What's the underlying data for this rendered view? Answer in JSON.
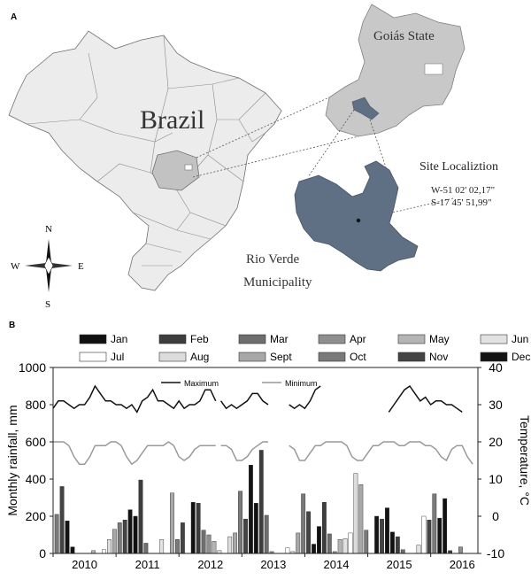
{
  "panel_a": {
    "letter": "A",
    "country_label": "Brazil",
    "state_label": "Goiás State",
    "site_title": "Site Localiztion",
    "coord_w": "W-51 02' 02,17\"",
    "coord_s": "S-17 45' 51,99\"",
    "municipality_line1": "Rio Verde",
    "municipality_line2": "Municipality",
    "compass": {
      "n": "N",
      "s": "S",
      "e": "E",
      "w": "W"
    },
    "colors": {
      "country_fill": "#ececec",
      "state_fill": "#c8c8c8",
      "highlight_fill": "#c2c2c2",
      "municipality_fill": "#5f6f84",
      "border": "#707070"
    }
  },
  "panel_b": {
    "letter": "B",
    "legend_months": [
      "Jan",
      "Feb",
      "Mar",
      "Apr",
      "May",
      "Jun",
      "Jul",
      "Aug",
      "Sept",
      "Oct",
      "Nov",
      "Dec"
    ],
    "month_colors": [
      "#111111",
      "#3d3d3d",
      "#6e6e6e",
      "#8f8f8f",
      "#b4b4b4",
      "#e2e2e2",
      "#ffffff",
      "#dcdcdc",
      "#a8a8a8",
      "#7a7a7a",
      "#444444",
      "#141414"
    ],
    "line_legend": {
      "max": "Maximum",
      "min": "Minimum"
    },
    "colors": {
      "max_line": "#111111",
      "min_line": "#999999"
    }
  },
  "chart_data": {
    "type": "bar",
    "xlabel": "",
    "ylabel": "Monthly rainfall, mm",
    "ylabel_right": "Temperature, °C",
    "ylim": [
      0,
      1000
    ],
    "ylim_right": [
      -10,
      40
    ],
    "yticks": [
      0,
      200,
      400,
      600,
      800,
      1000
    ],
    "yticks_right": [
      -10,
      0,
      10,
      20,
      30,
      40
    ],
    "year_labels": [
      "2010",
      "2011",
      "2012",
      "2013",
      "2014",
      "2015",
      "2016"
    ],
    "xlim_months": [
      0,
      81
    ],
    "series": [
      {
        "name": "Monthly rainfall",
        "type": "bar",
        "points": [
          [
            0.7,
            210,
            9
          ],
          [
            1.7,
            360,
            10
          ],
          [
            2.7,
            175,
            11
          ],
          [
            3.7,
            35,
            0
          ],
          [
            7.7,
            15,
            4
          ],
          [
            9.7,
            20,
            6
          ],
          [
            10.7,
            75,
            7
          ],
          [
            11.7,
            130,
            8
          ],
          [
            12.7,
            165,
            9
          ],
          [
            13.7,
            180,
            10
          ],
          [
            14.7,
            235,
            11
          ],
          [
            15.7,
            200,
            0
          ],
          [
            16.7,
            395,
            1
          ],
          [
            17.7,
            55,
            2
          ],
          [
            20.7,
            75,
            5
          ],
          [
            22.7,
            325,
            8
          ],
          [
            23.7,
            75,
            9
          ],
          [
            24.7,
            165,
            10
          ],
          [
            26.7,
            275,
            0
          ],
          [
            27.7,
            270,
            1
          ],
          [
            28.7,
            125,
            2
          ],
          [
            29.7,
            100,
            3
          ],
          [
            30.7,
            65,
            4
          ],
          [
            31.7,
            15,
            5
          ],
          [
            33.7,
            90,
            7
          ],
          [
            34.7,
            110,
            8
          ],
          [
            35.7,
            335,
            9
          ],
          [
            36.7,
            185,
            10
          ],
          [
            37.7,
            475,
            11
          ],
          [
            38.7,
            270,
            0
          ],
          [
            39.7,
            555,
            1
          ],
          [
            40.7,
            205,
            2
          ],
          [
            41.7,
            10,
            3
          ],
          [
            44.7,
            30,
            6
          ],
          [
            45.7,
            10,
            7
          ],
          [
            46.7,
            110,
            8
          ],
          [
            47.7,
            320,
            9
          ],
          [
            48.7,
            225,
            10
          ],
          [
            49.7,
            50,
            11
          ],
          [
            50.7,
            145,
            0
          ],
          [
            51.7,
            275,
            1
          ],
          [
            52.7,
            105,
            2
          ],
          [
            53.7,
            10,
            3
          ],
          [
            54.7,
            75,
            4
          ],
          [
            55.7,
            80,
            5
          ],
          [
            56.7,
            110,
            6
          ],
          [
            57.7,
            430,
            7
          ],
          [
            58.7,
            370,
            8
          ],
          [
            59.7,
            125,
            9
          ],
          [
            61.7,
            200,
            11
          ],
          [
            62.7,
            185,
            10
          ],
          [
            63.7,
            245,
            11
          ],
          [
            64.7,
            115,
            0
          ],
          [
            65.7,
            90,
            1
          ],
          [
            66.7,
            20,
            2
          ],
          [
            69.7,
            45,
            5
          ],
          [
            70.7,
            200,
            6
          ],
          [
            71.7,
            180,
            10
          ],
          [
            72.7,
            320,
            9
          ],
          [
            73.7,
            190,
            11
          ],
          [
            74.7,
            295,
            0
          ],
          [
            75.7,
            15,
            1
          ],
          [
            77.7,
            35,
            3
          ]
        ]
      },
      {
        "name": "Maximum",
        "type": "line",
        "axis": "right",
        "segments": [
          [
            [
              0,
              29
            ],
            [
              1,
              31
            ],
            [
              2,
              31
            ],
            [
              3,
              30
            ],
            [
              4,
              29
            ],
            [
              5,
              30
            ],
            [
              6,
              30
            ],
            [
              7,
              32
            ],
            [
              8,
              35
            ],
            [
              9,
              33
            ],
            [
              10,
              31
            ],
            [
              11,
              31
            ],
            [
              12,
              30
            ],
            [
              13,
              30
            ],
            [
              14,
              29
            ],
            [
              15,
              30
            ],
            [
              16,
              28
            ],
            [
              17,
              31
            ],
            [
              18,
              32
            ],
            [
              19,
              34
            ],
            [
              20,
              31
            ],
            [
              21,
              31
            ],
            [
              22,
              30
            ],
            [
              23,
              29
            ],
            [
              24,
              31
            ],
            [
              25,
              29
            ],
            [
              26,
              30
            ],
            [
              27,
              30
            ],
            [
              28,
              31
            ],
            [
              29,
              34
            ],
            [
              30,
              34
            ],
            [
              31,
              31
            ]
          ],
          [
            [
              32,
              31
            ],
            [
              33,
              29
            ],
            [
              34,
              30
            ],
            [
              35,
              29
            ],
            [
              36,
              30
            ],
            [
              37,
              31
            ],
            [
              38,
              33
            ],
            [
              39,
              33
            ],
            [
              40,
              31
            ],
            [
              41,
              30
            ]
          ],
          [
            [
              45,
              30
            ],
            [
              46,
              29
            ],
            [
              47,
              30
            ],
            [
              48,
              29
            ],
            [
              49,
              31
            ],
            [
              50,
              34
            ],
            [
              51,
              35
            ]
          ],
          [
            [
              64,
              28
            ],
            [
              65,
              30
            ],
            [
              66,
              32
            ],
            [
              67,
              34
            ],
            [
              68,
              35
            ],
            [
              69,
              33
            ],
            [
              70,
              31
            ],
            [
              71,
              32
            ],
            [
              72,
              30
            ],
            [
              73,
              31
            ],
            [
              74,
              31
            ],
            [
              75,
              30
            ],
            [
              76,
              30
            ],
            [
              77,
              29
            ],
            [
              78,
              28
            ]
          ]
        ]
      },
      {
        "name": "Minimum",
        "type": "line",
        "axis": "right",
        "segments": [
          [
            [
              0,
              20
            ],
            [
              1,
              20
            ],
            [
              2,
              20
            ],
            [
              3,
              19
            ],
            [
              4,
              16
            ],
            [
              5,
              14
            ],
            [
              6,
              14
            ],
            [
              7,
              16
            ],
            [
              8,
              19
            ],
            [
              9,
              19
            ],
            [
              10,
              19
            ],
            [
              11,
              20
            ],
            [
              12,
              20
            ],
            [
              13,
              19
            ],
            [
              14,
              16
            ],
            [
              15,
              14
            ],
            [
              16,
              15
            ],
            [
              17,
              17
            ],
            [
              18,
              19
            ],
            [
              19,
              19
            ],
            [
              20,
              19
            ],
            [
              21,
              19
            ],
            [
              22,
              20
            ],
            [
              23,
              19
            ],
            [
              24,
              16
            ],
            [
              25,
              15
            ],
            [
              26,
              16
            ],
            [
              27,
              18
            ],
            [
              28,
              19
            ],
            [
              29,
              19
            ],
            [
              30,
              19
            ],
            [
              31,
              19
            ]
          ],
          [
            [
              32,
              19
            ],
            [
              33,
              19
            ],
            [
              34,
              18
            ],
            [
              35,
              15
            ],
            [
              36,
              15
            ],
            [
              37,
              16
            ],
            [
              38,
              18
            ],
            [
              39,
              19
            ],
            [
              40,
              20
            ],
            [
              41,
              20
            ]
          ],
          [
            [
              45,
              19
            ],
            [
              46,
              18
            ],
            [
              47,
              15
            ],
            [
              48,
              15
            ],
            [
              49,
              17
            ],
            [
              50,
              19
            ],
            [
              51,
              19
            ],
            [
              52,
              20
            ],
            [
              53,
              20
            ],
            [
              54,
              20
            ],
            [
              55,
              20
            ],
            [
              56,
              19
            ],
            [
              57,
              16
            ],
            [
              58,
              15
            ],
            [
              59,
              15
            ],
            [
              60,
              17
            ],
            [
              61,
              19
            ],
            [
              62,
              19
            ],
            [
              63,
              20
            ],
            [
              64,
              20
            ],
            [
              65,
              20
            ],
            [
              66,
              19
            ],
            [
              67,
              19
            ],
            [
              68,
              20
            ],
            [
              69,
              20
            ],
            [
              70,
              20
            ],
            [
              71,
              19
            ],
            [
              72,
              19
            ],
            [
              73,
              18
            ],
            [
              74,
              16
            ],
            [
              75,
              15
            ],
            [
              76,
              18
            ],
            [
              77,
              19
            ],
            [
              78,
              19
            ],
            [
              79,
              16
            ],
            [
              80,
              14
            ]
          ]
        ]
      }
    ]
  }
}
